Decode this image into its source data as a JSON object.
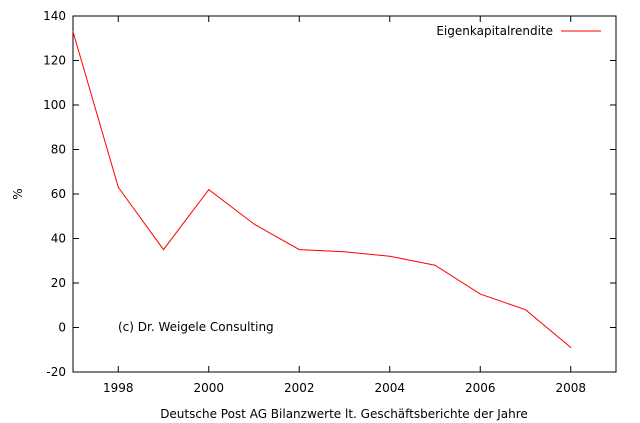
{
  "chart_data": {
    "type": "line",
    "xlabel": "Deutsche Post AG Bilanzwerte lt. Geschäftsberichte der Jahre",
    "ylabel": "%",
    "xlim": [
      1997,
      2009
    ],
    "ylim": [
      -20,
      140
    ],
    "xticks": [
      1998,
      2000,
      2002,
      2004,
      2006,
      2008
    ],
    "yticks": [
      -20,
      0,
      20,
      40,
      60,
      80,
      100,
      120,
      140
    ],
    "grid": false,
    "legend_position": "top-right",
    "annotation": "(c) Dr. Weigele Consulting",
    "series": [
      {
        "name": "Eigenkapitalrendite",
        "color": "#ff0000",
        "x": [
          1997,
          1998,
          1999,
          2000,
          2001,
          2002,
          2003,
          2004,
          2005,
          2006,
          2007,
          2008
        ],
        "y": [
          133,
          63,
          35,
          62,
          46.5,
          35,
          34,
          32,
          28,
          15,
          8,
          -9
        ]
      }
    ]
  }
}
